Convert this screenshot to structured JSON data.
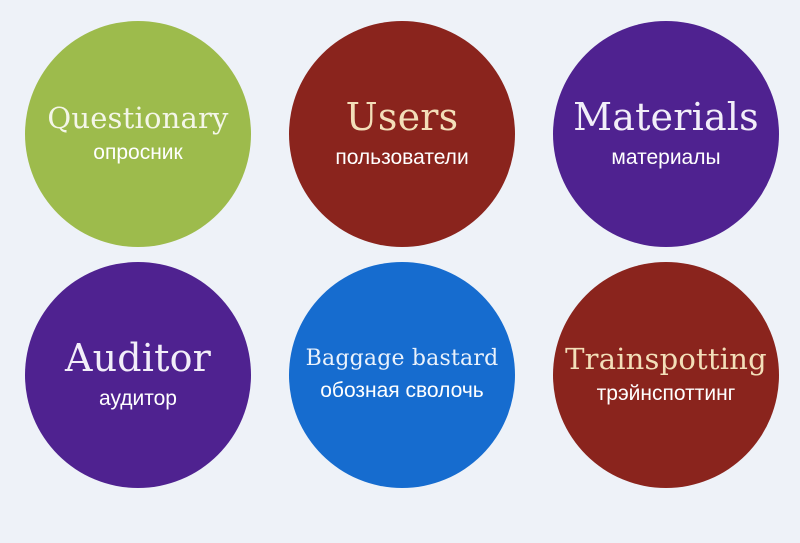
{
  "tiles": [
    {
      "title": "Questionary",
      "subtitle": "опросник",
      "bg": "#9dbb4c",
      "title_color": "#f4f6e8",
      "subtitle_color": "#ffffff"
    },
    {
      "title": "Users",
      "subtitle": "пользователи",
      "bg": "#8a241d",
      "title_color": "#f3dfb9",
      "subtitle_color": "#ffffff"
    },
    {
      "title": "Materials",
      "subtitle": "материалы",
      "bg": "#4f2290",
      "title_color": "#f2eef9",
      "subtitle_color": "#ffffff"
    },
    {
      "title": "Auditor",
      "subtitle": "аудитор",
      "bg": "#4f2290",
      "title_color": "#f2eef9",
      "subtitle_color": "#ffffff"
    },
    {
      "title": "Baggage bastard",
      "subtitle": "обозная сволочь",
      "bg": "#166ccf",
      "title_color": "#eaf2fc",
      "subtitle_color": "#ffffff"
    },
    {
      "title": "Trainspotting",
      "subtitle": "трэйнспоттинг",
      "bg": "#8a241d",
      "title_color": "#f3dfb9",
      "subtitle_color": "#ffffff"
    }
  ]
}
